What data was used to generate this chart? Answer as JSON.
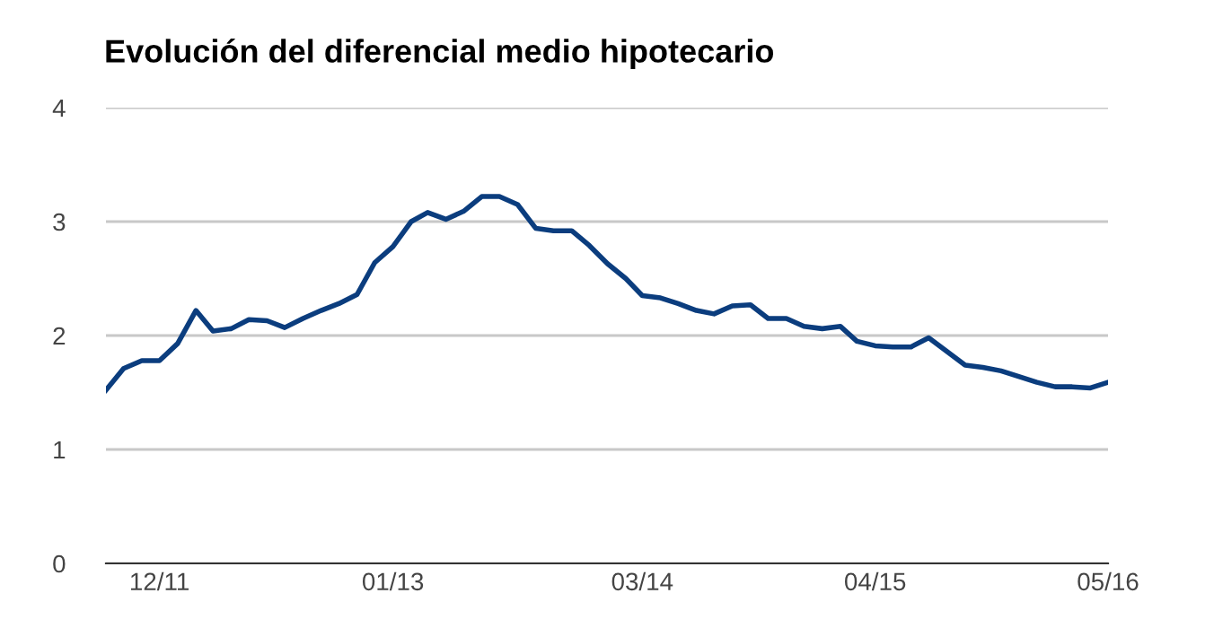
{
  "chart_data": {
    "type": "line",
    "title": "Evolución del diferencial medio hipotecario",
    "x": [
      "2011-09",
      "2011-10",
      "2011-11",
      "2011-12",
      "2012-01",
      "2012-02",
      "2012-03",
      "2012-04",
      "2012-05",
      "2012-06",
      "2012-07",
      "2012-08",
      "2012-09",
      "2012-10",
      "2012-11",
      "2012-12",
      "2013-01",
      "2013-02",
      "2013-03",
      "2013-04",
      "2013-05",
      "2013-06",
      "2013-07",
      "2013-08",
      "2013-09",
      "2013-10",
      "2013-11",
      "2013-12",
      "2014-01",
      "2014-02",
      "2014-03",
      "2014-04",
      "2014-05",
      "2014-06",
      "2014-07",
      "2014-08",
      "2014-09",
      "2014-10",
      "2014-11",
      "2014-12",
      "2015-01",
      "2015-02",
      "2015-03",
      "2015-04",
      "2015-05",
      "2015-06",
      "2015-07",
      "2015-08",
      "2015-09",
      "2015-10",
      "2015-11",
      "2015-12",
      "2016-01",
      "2016-02",
      "2016-03",
      "2016-04",
      "2016-05"
    ],
    "series": [
      {
        "color": "#0b3d7e",
        "values": [
          1.52,
          1.71,
          1.78,
          1.78,
          1.93,
          2.22,
          2.04,
          2.06,
          2.14,
          2.13,
          2.07,
          2.15,
          2.22,
          2.28,
          2.36,
          2.64,
          2.78,
          3.0,
          3.08,
          3.02,
          3.09,
          3.22,
          3.22,
          3.15,
          2.94,
          2.92,
          2.92,
          2.79,
          2.63,
          2.5,
          2.35,
          2.33,
          2.28,
          2.22,
          2.19,
          2.26,
          2.27,
          2.15,
          2.15,
          2.08,
          2.06,
          2.08,
          1.95,
          1.91,
          1.9,
          1.9,
          1.98,
          1.86,
          1.74,
          1.72,
          1.69,
          1.64,
          1.59,
          1.55,
          1.55,
          1.54,
          1.59
        ]
      }
    ],
    "xlim": [
      "2011-09",
      "2016-05"
    ],
    "xticks": [
      {
        "value": "2011-12",
        "label": "12/11"
      },
      {
        "value": "2013-01",
        "label": "01/13"
      },
      {
        "value": "2014-03",
        "label": "03/14"
      },
      {
        "value": "2015-04",
        "label": "04/15"
      },
      {
        "value": "2016-05",
        "label": "05/16"
      }
    ],
    "ylim": [
      0,
      4
    ],
    "yticks": [
      0,
      1,
      2,
      3,
      4
    ],
    "grid": "y",
    "legend": false,
    "marker": "none",
    "line_style": "solid"
  }
}
